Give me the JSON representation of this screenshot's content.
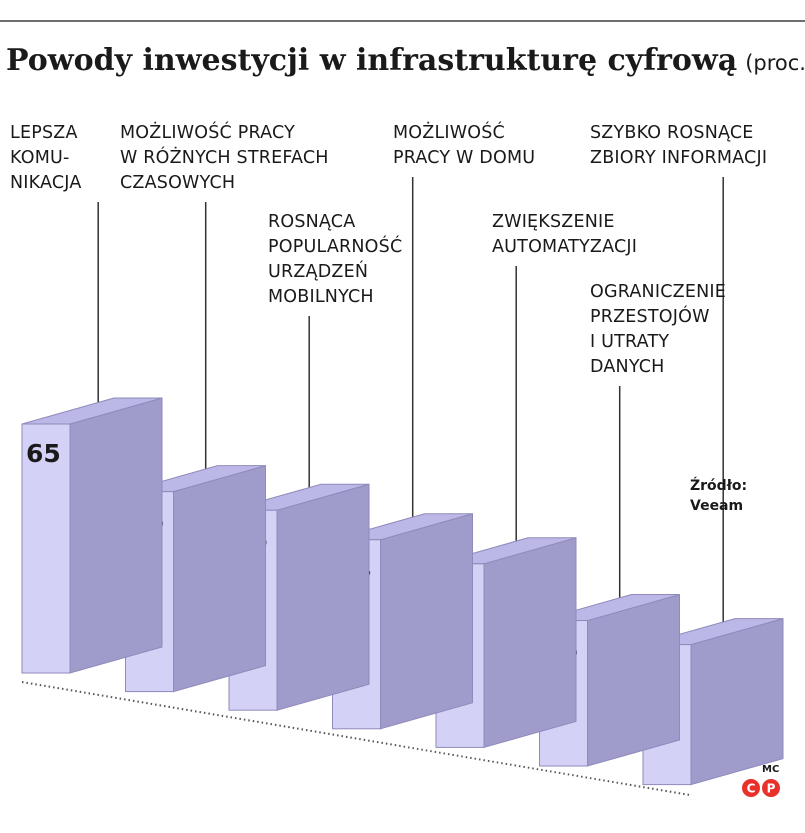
{
  "chart_data": {
    "type": "bar",
    "title": "Powody inwestycji w infrastrukturę cyfrową",
    "unit": "(proc.)",
    "categories": [
      "LEPSZA KOMUNIKACJA",
      "MOŻLIWOŚĆ PRACY W RÓŻNYCH STREFACH CZASOWYCH",
      "ROSNĄCA POPULARNOŚĆ URZĄDZEŃ MOBILNYCH",
      "MOŻLIWOŚĆ PRACY W DOMU",
      "ZWIĘKSZENIE AUTOMATYZACJI",
      "OGRANICZENIE PRZESTOJÓW I UTRATY DANYCH",
      "SZYBKO ROSNĄCE ZBIORY INFORMACJI"
    ],
    "category_lines": [
      [
        "LEPSZA",
        "KOMU-",
        "NIKACJA"
      ],
      [
        "MOŻLIWOŚĆ PRACY",
        "W RÓŻNYCH STREFACH",
        "CZASOWYCH"
      ],
      [
        "ROSNĄCA",
        "POPULARNOŚĆ",
        "URZĄDZEŃ",
        "MOBILNYCH"
      ],
      [
        "MOŻLIWOŚĆ",
        "PRACY W DOMU"
      ],
      [
        "ZWIĘKSZENIE",
        "AUTOMATYZACJI"
      ],
      [
        "OGRANICZENIE",
        "PRZESTOJÓW",
        "I UTRATY",
        "DANYCH"
      ],
      [
        "SZYBKO ROSNĄCE",
        "ZBIORY INFORMACJI"
      ]
    ],
    "values": [
      65,
      56,
      56,
      54,
      53,
      46,
      45
    ],
    "source_lines": [
      "Źródło:",
      "Veeam"
    ],
    "credit": "MC",
    "logo_letters": [
      "C",
      "P"
    ],
    "grid": false,
    "legend": "none",
    "colors": {
      "front": "#d4d1f7",
      "side": "#9f9bcb",
      "top": "#bbb7e7",
      "edge": "#8e8aba",
      "text": "#1a1a1a",
      "rule": "#6e6e6e",
      "logo": "#e8312a"
    }
  }
}
